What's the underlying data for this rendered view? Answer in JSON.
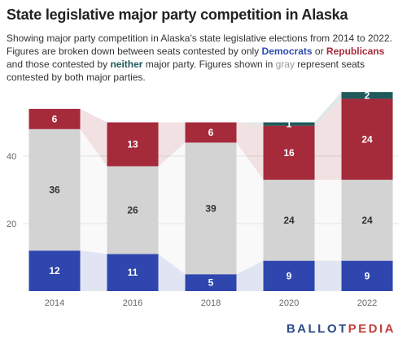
{
  "title": "State legislative major party competition in Alaska",
  "subtitle": {
    "part1": "Showing major party competition in Alaska's state legislative elections from 2014 to 2022. Figures are broken down between seats contested by only ",
    "dem": "Democrats",
    "part2": " or ",
    "rep": "Republicans",
    "part3": " and those contested by ",
    "nei": "neither",
    "part4": " major party. Figures shown in ",
    "gry": "gray",
    "part5": " represent seats contested by both major parties."
  },
  "brand": {
    "part1": "BALLOT",
    "part2": "PEDIA"
  },
  "chart_data": {
    "type": "bar",
    "stacked": true,
    "categories": [
      "2014",
      "2016",
      "2018",
      "2020",
      "2022"
    ],
    "series": [
      {
        "key": "dem",
        "color": "#2e46ad",
        "values": [
          12,
          11,
          5,
          9,
          9
        ]
      },
      {
        "key": "both",
        "color": "#d3d3d3",
        "values": [
          36,
          26,
          39,
          24,
          24
        ]
      },
      {
        "key": "rep",
        "color": "#a52a3a",
        "values": [
          6,
          13,
          6,
          16,
          24
        ]
      },
      {
        "key": "neither",
        "color": "#1f5a5c",
        "values": [
          0,
          0,
          0,
          1,
          2
        ]
      }
    ],
    "value_labels": [
      [
        "12",
        "36",
        "6",
        ""
      ],
      [
        "11",
        "26",
        "13",
        ""
      ],
      [
        "5",
        "39",
        "6",
        ""
      ],
      [
        "9",
        "24",
        "16",
        "1"
      ],
      [
        "9",
        "24",
        "24",
        "2"
      ]
    ],
    "yticks": [
      "20",
      "40"
    ],
    "ylim": [
      0,
      60
    ],
    "grid": true
  }
}
